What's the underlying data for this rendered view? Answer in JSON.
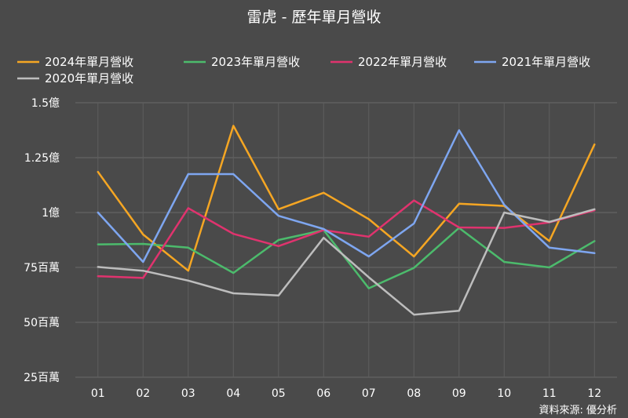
{
  "chart_data": {
    "type": "line",
    "title": "雷虎 - 歷年單月營收",
    "xlabel": "",
    "ylabel": "",
    "categories": [
      "01",
      "02",
      "03",
      "04",
      "05",
      "06",
      "07",
      "08",
      "09",
      "10",
      "11",
      "12"
    ],
    "ylim": [
      25000000,
      150000000
    ],
    "yticks": [
      {
        "value": 150000000,
        "label": "1.5億"
      },
      {
        "value": 125000000,
        "label": "1.25億"
      },
      {
        "value": 100000000,
        "label": "1億"
      },
      {
        "value": 75000000,
        "label": "75百萬"
      },
      {
        "value": 50000000,
        "label": "50百萬"
      },
      {
        "value": 25000000,
        "label": "25百萬"
      }
    ],
    "grid": true,
    "legend_position": "top",
    "series": [
      {
        "name": "2024年單月營收",
        "color": "#f5a623",
        "values": [
          118.5,
          90,
          73.5,
          139.5,
          101.5,
          109,
          97,
          80,
          104,
          103,
          87,
          131
        ]
      },
      {
        "name": "2023年單月營收",
        "color": "#4cbb6c",
        "values": [
          85.5,
          85.7,
          84,
          72.5,
          87.5,
          92,
          65.5,
          74.8,
          93,
          77.5,
          75,
          87
        ]
      },
      {
        "name": "2022年單月營收",
        "color": "#e0336e",
        "values": [
          71,
          70.2,
          102,
          90.3,
          84.7,
          92,
          89,
          105.5,
          93.2,
          93,
          95.5,
          101
        ]
      },
      {
        "name": "2021年單月營收",
        "color": "#7ea6f0",
        "values": [
          100,
          77.5,
          117.5,
          117.5,
          98.5,
          92.5,
          80,
          95,
          137.5,
          103.5,
          84,
          81.5
        ]
      },
      {
        "name": "2020年單月營收",
        "color": "#bdbdbd",
        "values": [
          75.2,
          73.5,
          69,
          63.2,
          62.2,
          88.5,
          70.5,
          53.5,
          55.3,
          100,
          95.7,
          101.5
        ]
      }
    ],
    "units": "millions"
  },
  "source_label": "資料來源: 優分析"
}
